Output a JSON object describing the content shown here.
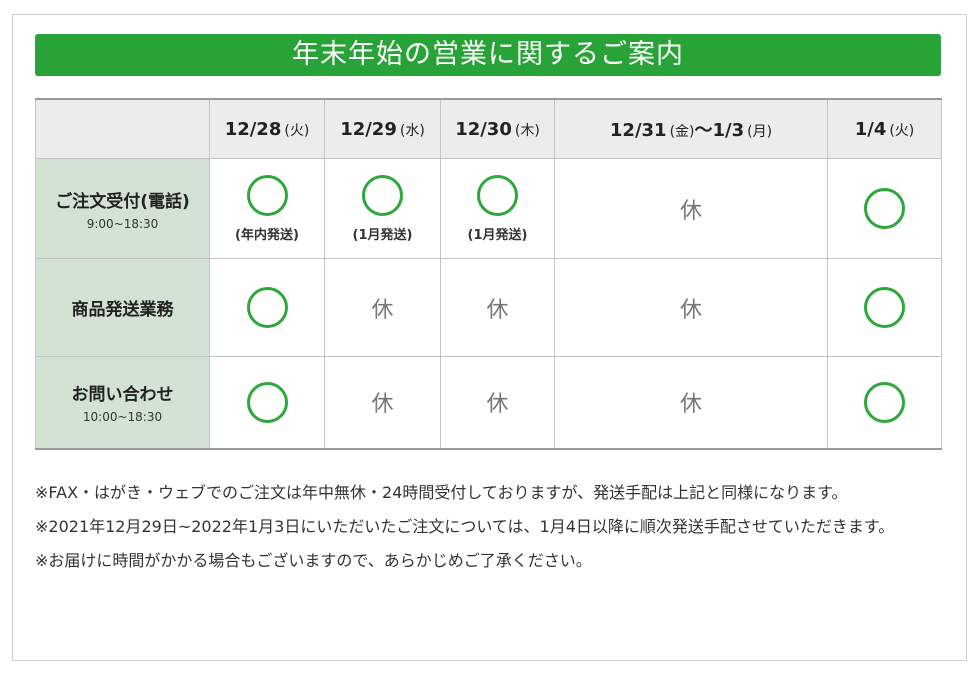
{
  "title": "年末年始の営業に関するご案内",
  "columns": [
    {
      "date": "12/28",
      "dow": "(火)"
    },
    {
      "date": "12/29",
      "dow": "(水)"
    },
    {
      "date": "12/30",
      "dow": "(木)"
    },
    {
      "date": "12/31",
      "dow": "(金)",
      "range_sep": "～",
      "date2": "1/3",
      "dow2": "(月)"
    },
    {
      "date": "1/4",
      "dow": "(火)"
    }
  ],
  "rows": [
    {
      "label": "ご注文受付(電話)",
      "sub": "9:00~18:30",
      "cells": [
        {
          "status": "open",
          "note": "(年内発送)"
        },
        {
          "status": "open",
          "note": "(1月発送)"
        },
        {
          "status": "open",
          "note": "(1月発送)"
        },
        {
          "status": "closed",
          "text": "休"
        },
        {
          "status": "open"
        }
      ]
    },
    {
      "label": "商品発送業務",
      "cells": [
        {
          "status": "open"
        },
        {
          "status": "closed",
          "text": "休"
        },
        {
          "status": "closed",
          "text": "休"
        },
        {
          "status": "closed",
          "text": "休"
        },
        {
          "status": "open"
        }
      ]
    },
    {
      "label": "お問い合わせ",
      "sub": "10:00~18:30",
      "cells": [
        {
          "status": "open"
        },
        {
          "status": "closed",
          "text": "休"
        },
        {
          "status": "closed",
          "text": "休"
        },
        {
          "status": "closed",
          "text": "休"
        },
        {
          "status": "open"
        }
      ]
    }
  ],
  "notes": [
    "※FAX・はがき・ウェブでのご注文は年中無休・24時間受付しておりますが、発送手配は上記と同様になります。",
    "※2021年12月29日~2022年1月3日にいただいたご注文については、1月4日以降に順次発送手配させていただきます。",
    "※お届けに時間がかかる場合もございますので、あらかじめご了承ください。"
  ],
  "colors": {
    "accent": "#28a337",
    "circle": "#2ea83c",
    "label_bg": "#d3e2d3",
    "header_bg": "#ececec"
  }
}
